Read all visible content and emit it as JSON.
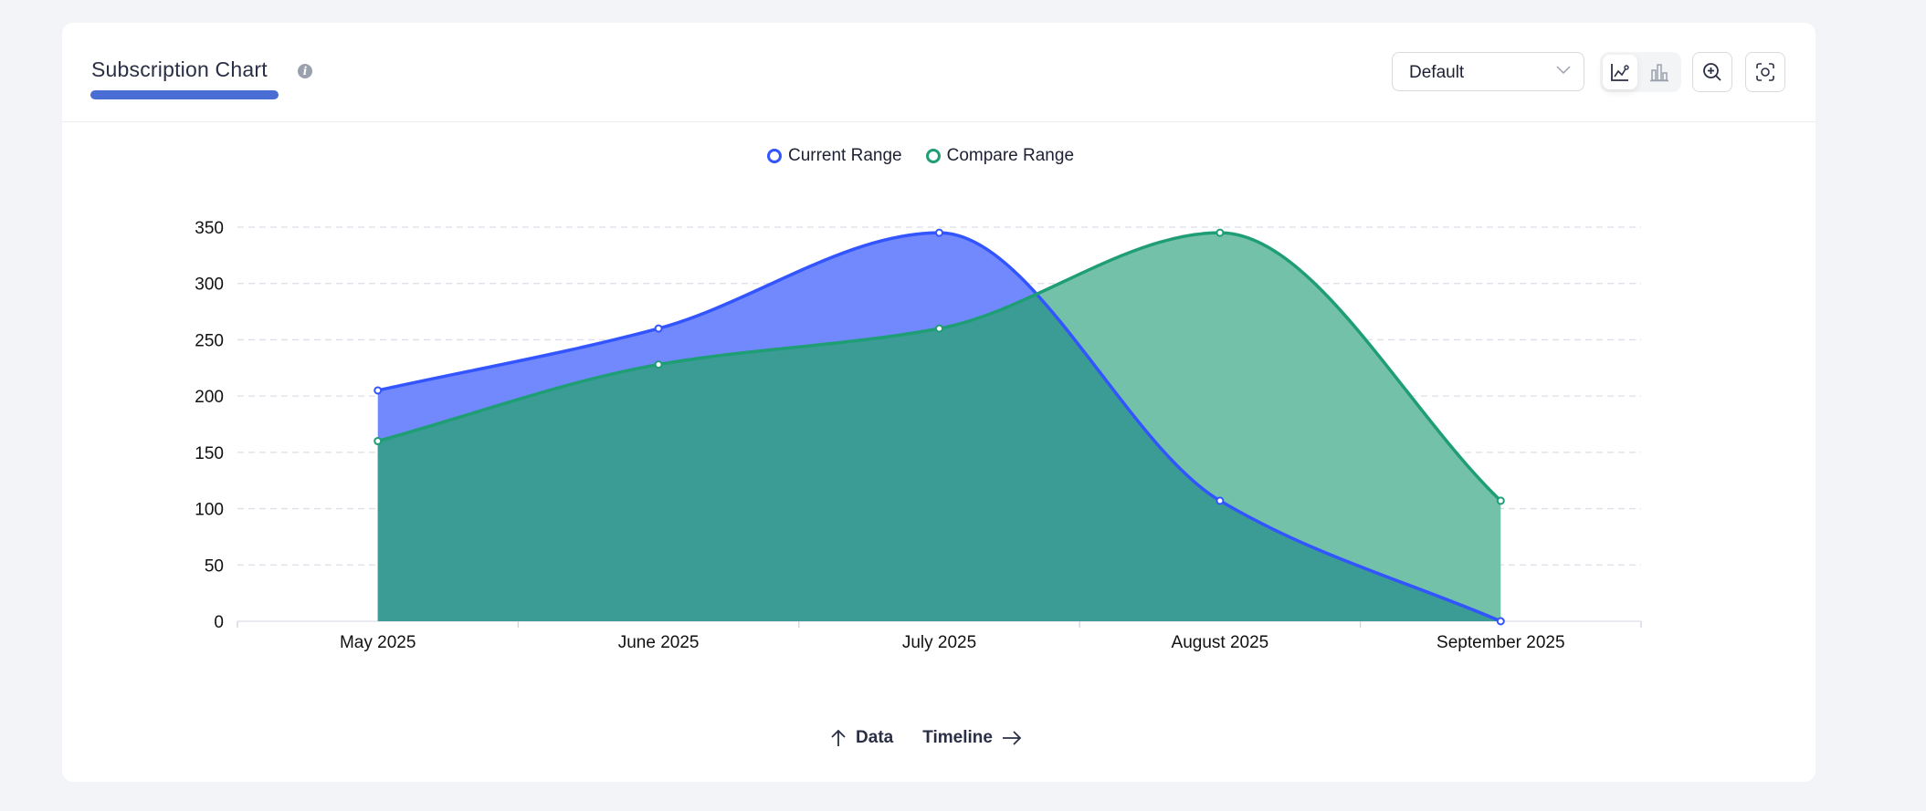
{
  "header": {
    "title": "Subscription Chart",
    "info_icon": "info-icon",
    "select_value": "Default",
    "buttons": {
      "line": "line-chart-icon",
      "bar": "bar-chart-icon",
      "zoom": "zoom-in-icon",
      "screenshot": "screenshot-icon"
    }
  },
  "footer": {
    "y_label": "Data",
    "x_label": "Timeline"
  },
  "chart_data": {
    "type": "area",
    "title": "Subscription Chart",
    "categories": [
      "May 2025",
      "June 2025",
      "July 2025",
      "August 2025",
      "September 2025"
    ],
    "series": [
      {
        "name": "Current Range",
        "values": [
          205,
          260,
          345,
          107,
          0
        ],
        "color": "#3355ff",
        "fill": "#7189fc"
      },
      {
        "name": "Compare Range",
        "values": [
          160,
          228,
          260,
          345,
          107
        ],
        "color": "#1f9e76",
        "fill": "#3a9c94"
      }
    ],
    "compare_fill_top": "#73c1a8",
    "ylim": [
      0,
      350
    ],
    "yticks": [
      0,
      50,
      100,
      150,
      200,
      250,
      300,
      350
    ],
    "grid": true,
    "legend": "top-center",
    "xlabel": "Timeline",
    "ylabel": "Data"
  }
}
